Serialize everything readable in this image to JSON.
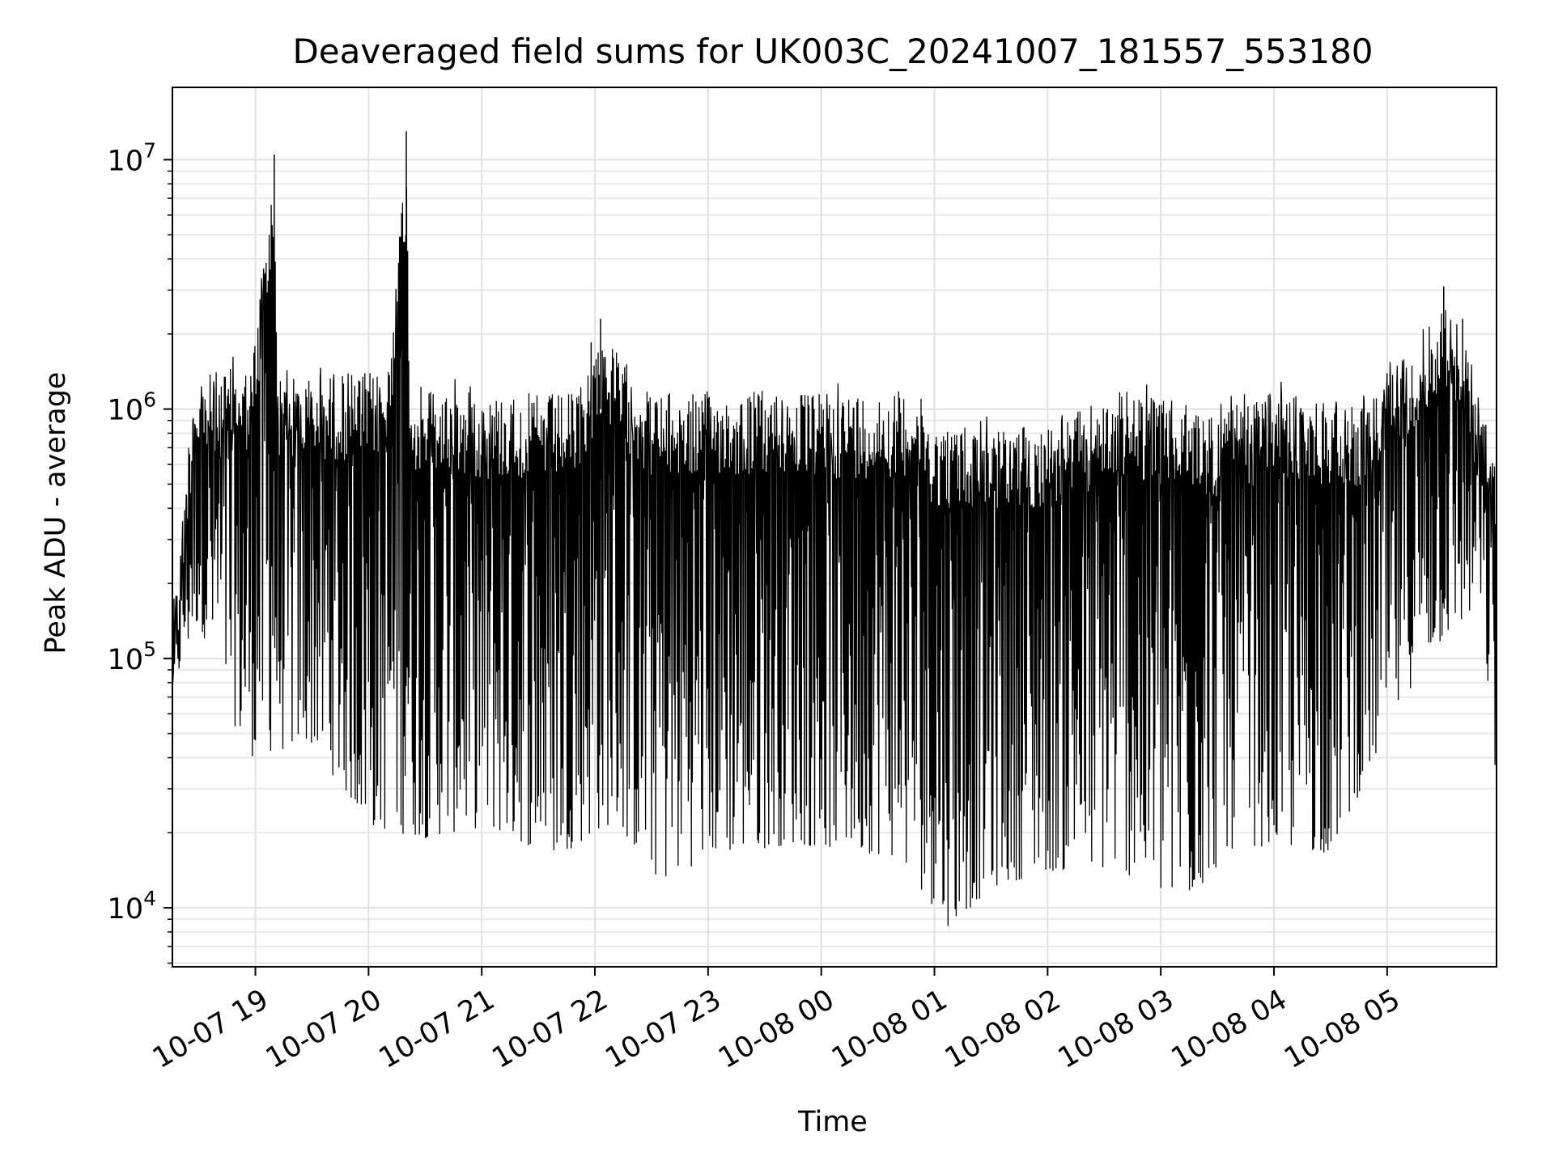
{
  "chart_data": {
    "type": "line",
    "title": "Deaveraged field sums for UK003C_20241007_181557_553180",
    "xlabel": "Time",
    "ylabel": "Peak ADU - average",
    "yscale": "log",
    "ylim": [
      5800,
      19500000
    ],
    "xlim": [
      "2024-10-07 18:16",
      "2024-10-08 05:58"
    ],
    "grid": true,
    "line_color": "#000000",
    "x_ticks": [
      "10-07 19",
      "10-07 20",
      "10-07 21",
      "10-07 22",
      "10-07 23",
      "10-08 00",
      "10-08 01",
      "10-08 02",
      "10-08 03",
      "10-08 04",
      "10-08 05"
    ],
    "y_ticks": [
      {
        "base": "10",
        "exp": "4",
        "value": 10000
      },
      {
        "base": "10",
        "exp": "5",
        "value": 100000
      },
      {
        "base": "10",
        "exp": "6",
        "value": 1000000
      },
      {
        "base": "10",
        "exp": "7",
        "value": 10000000
      }
    ],
    "series": [
      {
        "peak_envelope": [
          [
            "2024-10-07 18:16",
            150000
          ],
          [
            "2024-10-07 18:20",
            320000
          ],
          [
            "2024-10-07 18:27",
            1500000
          ],
          [
            "2024-10-07 18:40",
            1600000
          ],
          [
            "2024-10-07 18:58",
            1700000
          ],
          [
            "2024-10-07 19:10",
            10500000
          ],
          [
            "2024-10-07 19:12",
            1500000
          ],
          [
            "2024-10-07 19:40",
            1550000
          ],
          [
            "2024-10-07 20:10",
            1600000
          ],
          [
            "2024-10-07 20:20",
            13000000
          ],
          [
            "2024-10-07 20:22",
            1400000
          ],
          [
            "2024-10-07 21:00",
            1300000
          ],
          [
            "2024-10-07 21:50",
            1300000
          ],
          [
            "2024-10-07 21:58",
            1850000
          ],
          [
            "2024-10-07 22:03",
            2300000
          ],
          [
            "2024-10-07 22:30",
            1300000
          ],
          [
            "2024-10-07 23:30",
            1350000
          ],
          [
            "2024-10-08 00:00",
            1300000
          ],
          [
            "2024-10-08 00:50",
            1350000
          ],
          [
            "2024-10-08 01:00",
            1000000
          ],
          [
            "2024-10-08 01:40",
            950000
          ],
          [
            "2024-10-08 02:10",
            1050000
          ],
          [
            "2024-10-08 02:40",
            1350000
          ],
          [
            "2024-10-08 03:30",
            1100000
          ],
          [
            "2024-10-08 04:00",
            1300000
          ],
          [
            "2024-10-08 04:50",
            1200000
          ],
          [
            "2024-10-08 05:30",
            3100000
          ],
          [
            "2024-10-08 05:40",
            2300000
          ],
          [
            "2024-10-08 05:58",
            650000
          ]
        ],
        "trough_envelope": [
          [
            "2024-10-07 18:16",
            70000
          ],
          [
            "2024-10-07 18:30",
            140000
          ],
          [
            "2024-10-07 18:55",
            40000
          ],
          [
            "2024-10-07 19:30",
            45000
          ],
          [
            "2024-10-07 20:00",
            21000
          ],
          [
            "2024-10-07 20:30",
            19000
          ],
          [
            "2024-10-07 21:00",
            21000
          ],
          [
            "2024-10-07 21:40",
            16000
          ],
          [
            "2024-10-07 22:10",
            22000
          ],
          [
            "2024-10-07 22:35",
            12500
          ],
          [
            "2024-10-07 23:00",
            16000
          ],
          [
            "2024-10-07 23:45",
            18000
          ],
          [
            "2024-10-08 00:40",
            16000
          ],
          [
            "2024-10-08 01:08",
            8300
          ],
          [
            "2024-10-08 01:30",
            12000
          ],
          [
            "2024-10-08 02:00",
            14000
          ],
          [
            "2024-10-08 02:40",
            14000
          ],
          [
            "2024-10-08 03:10",
            9500
          ],
          [
            "2024-10-08 03:40",
            18000
          ],
          [
            "2024-10-08 04:30",
            16500
          ],
          [
            "2024-10-08 05:20",
            100000
          ],
          [
            "2024-10-08 05:50",
            160000
          ],
          [
            "2024-10-08 05:58",
            28000
          ]
        ]
      }
    ]
  }
}
